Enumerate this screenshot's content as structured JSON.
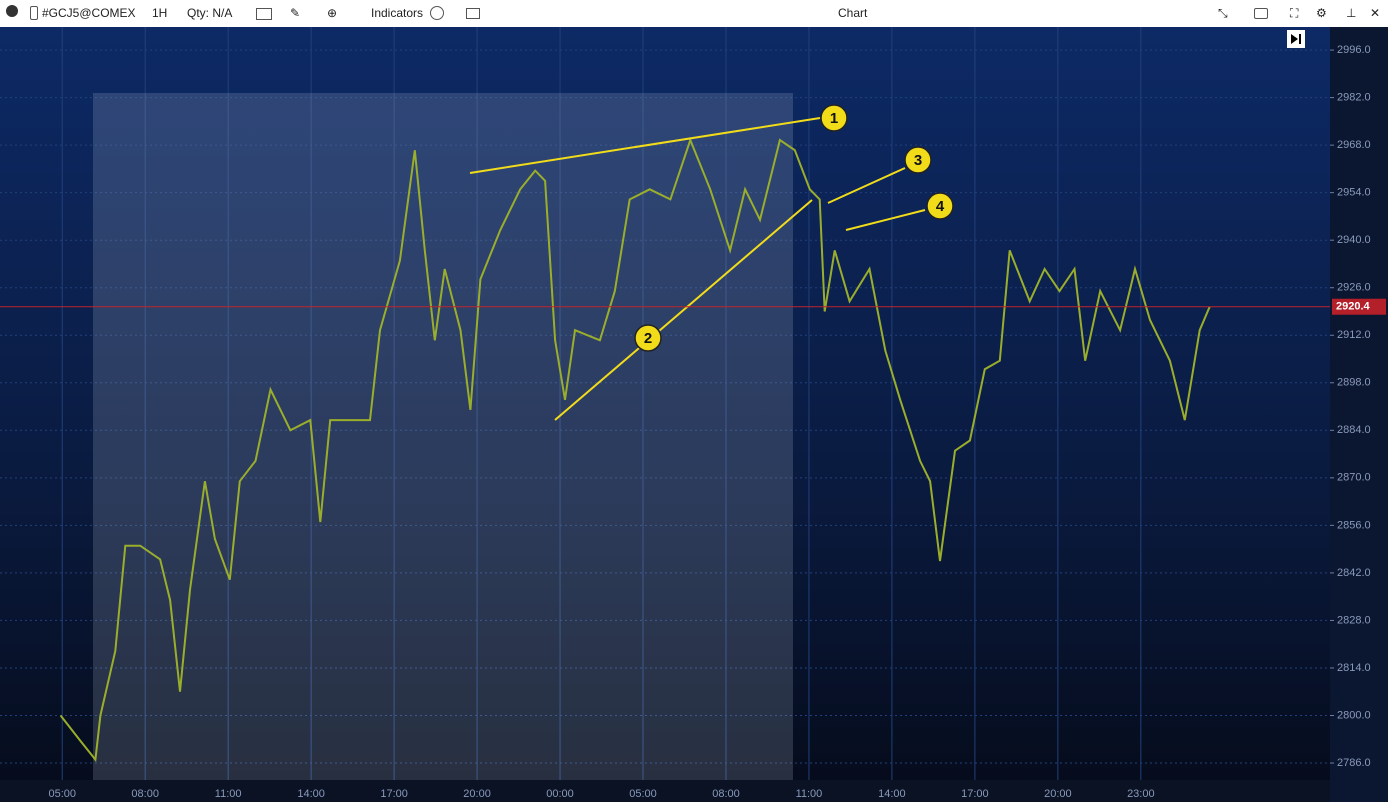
{
  "toolbar": {
    "symbol": "#GCJ5@COMEX",
    "interval": "1H",
    "qty": "Qty: N/A",
    "indicators": "Indicators",
    "title": "Chart"
  },
  "chart_data": {
    "type": "line",
    "x": [
      -0.02,
      0.22,
      0.4,
      0.46,
      0.64,
      0.76,
      0.94,
      1.18,
      1.3,
      1.42,
      1.54,
      1.72,
      1.84,
      2.02,
      2.14,
      2.33,
      2.51,
      2.75,
      2.99,
      3.11,
      3.23,
      3.47,
      3.71,
      3.83,
      4.07,
      4.25,
      4.37,
      4.49,
      4.61,
      4.8,
      4.92,
      5.04,
      5.28,
      5.52,
      5.7,
      5.82,
      5.94,
      6.06,
      6.18,
      6.48,
      6.66,
      6.84,
      7.08,
      7.33,
      7.57,
      7.81,
      8.05,
      8.23,
      8.41,
      8.65,
      8.83,
      9.01,
      9.13,
      9.19,
      9.31,
      9.49,
      9.73,
      9.92,
      10.1,
      10.34,
      10.46,
      10.58,
      10.76,
      10.94,
      11.12,
      11.3,
      11.42,
      11.66,
      11.84,
      12.02,
      12.2,
      12.33,
      12.51,
      12.75,
      12.93,
      13.11,
      13.35,
      13.53,
      13.71,
      13.83
    ],
    "series": [
      {
        "name": "#GCJ5@COMEX",
        "color": "#9aae2c",
        "values": [
          2800,
          2792.5,
          2787,
          2800,
          2819,
          2850,
          2850,
          2846,
          2834,
          2807,
          2837,
          2869,
          2852,
          2840,
          2869,
          2875,
          2896,
          2884,
          2887,
          2857,
          2887,
          2887,
          2887,
          2913.5,
          2934,
          2966.5,
          2937,
          2910.5,
          2931.5,
          2913.5,
          2890,
          2928.5,
          2943,
          2955,
          2960.5,
          2957.5,
          2910.5,
          2893,
          2913.5,
          2910.5,
          2925,
          2952,
          2955,
          2952,
          2969.5,
          2955,
          2937,
          2955,
          2946,
          2969.5,
          2966.5,
          2955,
          2952,
          2919,
          2937,
          2922,
          2931.5,
          2907.5,
          2893,
          2875,
          2869,
          2845.5,
          2878,
          2881,
          2902,
          2904.5,
          2937,
          2922,
          2931.5,
          2925,
          2931.5,
          2904.5,
          2925,
          2913.5,
          2931.5,
          2916.5,
          2904.5,
          2887,
          2913.5,
          2920.4
        ]
      }
    ],
    "last_price": 2920.4,
    "xlim": [
      -0.75,
      15.28
    ],
    "xticks": [
      {
        "value": 0,
        "label": "05:00"
      },
      {
        "value": 1,
        "label": "08:00"
      },
      {
        "value": 2,
        "label": "11:00"
      },
      {
        "value": 3,
        "label": "14:00"
      },
      {
        "value": 4,
        "label": "17:00"
      },
      {
        "value": 5,
        "label": "20:00"
      },
      {
        "value": 6,
        "label": "00:00"
      },
      {
        "value": 7,
        "label": "05:00"
      },
      {
        "value": 8,
        "label": "08:00"
      },
      {
        "value": 9,
        "label": "11:00"
      },
      {
        "value": 10,
        "label": "14:00"
      },
      {
        "value": 11,
        "label": "17:00"
      },
      {
        "value": 12,
        "label": "20:00"
      },
      {
        "value": 13,
        "label": "23:00"
      }
    ],
    "ylim": [
      2781,
      3002.5
    ],
    "yticks": [
      {
        "value": 2786,
        "label": "2786.0"
      },
      {
        "value": 2800,
        "label": "2800.0"
      },
      {
        "value": 2814,
        "label": "2814.0"
      },
      {
        "value": 2828,
        "label": "2828.0"
      },
      {
        "value": 2842,
        "label": "2842.0"
      },
      {
        "value": 2856,
        "label": "2856.0"
      },
      {
        "value": 2870,
        "label": "2870.0"
      },
      {
        "value": 2884,
        "label": "2884.0"
      },
      {
        "value": 2898,
        "label": "2898.0"
      },
      {
        "value": 2912,
        "label": "2912.0"
      },
      {
        "value": 2926,
        "label": "2926.0"
      },
      {
        "value": 2940,
        "label": "2940.0"
      },
      {
        "value": 2954,
        "label": "2954.0"
      },
      {
        "value": 2968,
        "label": "2968.0"
      },
      {
        "value": 2982,
        "label": "2982.0"
      },
      {
        "value": 2996,
        "label": "2996.0"
      }
    ],
    "grid": true,
    "annotations": [
      "1",
      "2",
      "3",
      "4"
    ]
  }
}
